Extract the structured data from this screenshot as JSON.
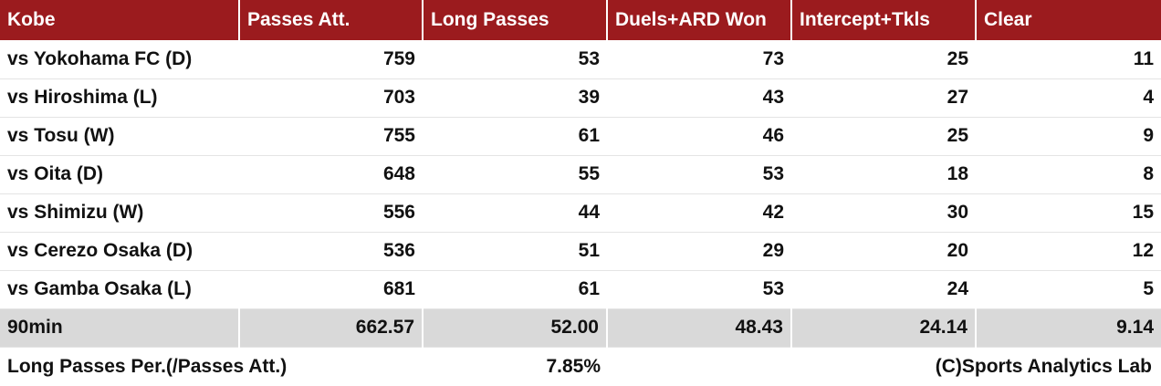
{
  "table": {
    "header": [
      "Kobe",
      "Passes Att.",
      "Long Passes",
      "Duels+ARD Won",
      "Intercept+Tkls",
      "Clear"
    ],
    "rows": [
      [
        "vs Yokohama FC (D)",
        "759",
        "53",
        "73",
        "25",
        "11"
      ],
      [
        "vs Hiroshima (L)",
        "703",
        "39",
        "43",
        "27",
        "4"
      ],
      [
        "vs Tosu (W)",
        "755",
        "61",
        "46",
        "25",
        "9"
      ],
      [
        "vs Oita (D)",
        "648",
        "55",
        "53",
        "18",
        "8"
      ],
      [
        "vs Shimizu (W)",
        "556",
        "44",
        "42",
        "30",
        "15"
      ],
      [
        "vs Cerezo Osaka (D)",
        "536",
        "51",
        "29",
        "20",
        "12"
      ],
      [
        "vs Gamba Osaka (L)",
        "681",
        "61",
        "53",
        "24",
        "5"
      ]
    ],
    "summary": [
      "90min",
      "662.57",
      "52.00",
      "48.43",
      "24.14",
      "9.14"
    ]
  },
  "footer": {
    "label": "Long Passes Per.(/Passes Att.)",
    "value": "7.85%",
    "credit": "(C)Sports Analytics Lab"
  }
}
